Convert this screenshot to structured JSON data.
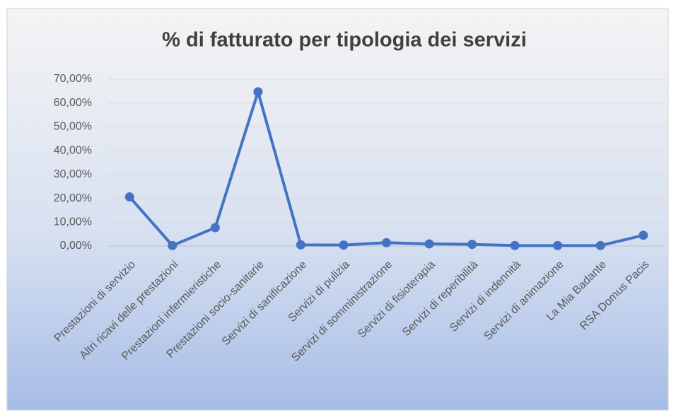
{
  "chart_data": {
    "type": "line",
    "title": "% di fatturato per tipologia dei servizi",
    "categories": [
      "Prestazioni di servizio",
      "Altri ricavi delle prestazioni",
      "Prestazioni infermieristiche",
      "Prestazioni socio-sanitarie",
      "Servizi di sanificazione",
      "Servizi di pulizia",
      "Servizi di somministrazione",
      "Servizi di fisioterapia",
      "Servizi di reperibilità",
      "Servizi di indennità",
      "Servizi di animazione",
      "La Mia Badante",
      "RSA Domus Pacis"
    ],
    "values": [
      20.6,
      0.2,
      7.7,
      64.7,
      0.5,
      0.4,
      1.4,
      0.9,
      0.7,
      0.2,
      0.2,
      0.2,
      4.5
    ],
    "color": "#4472c4",
    "ylim": [
      0,
      70
    ],
    "yticks": [
      {
        "value": 0,
        "label": "0,00%"
      },
      {
        "value": 10,
        "label": "10,00%"
      },
      {
        "value": 20,
        "label": "20,00%"
      },
      {
        "value": 30,
        "label": "30,00%"
      },
      {
        "value": 40,
        "label": "40,00%"
      },
      {
        "value": 50,
        "label": "50,00%"
      },
      {
        "value": 60,
        "label": "60,00%"
      },
      {
        "value": 70,
        "label": "70,00%"
      }
    ],
    "grid": true,
    "markers": true
  }
}
